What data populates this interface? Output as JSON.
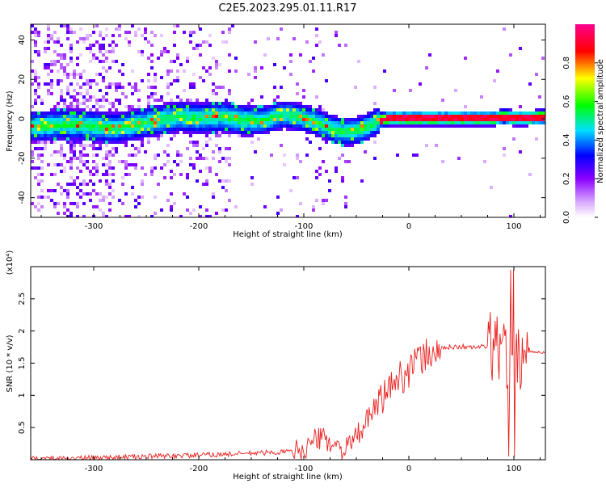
{
  "title": "C2E5.2023.295.01.11.R17",
  "chart_data": [
    {
      "type": "heatmap",
      "xlabel": "Height of straight line (km)",
      "ylabel": "Frequency (Hz)",
      "xlim": [
        -360,
        130
      ],
      "ylim": [
        -50,
        48
      ],
      "x_ticks": [
        -300,
        -200,
        -100,
        0,
        100
      ],
      "y_ticks": [
        -40,
        -20,
        0,
        20,
        40
      ],
      "colorbar": {
        "label": "Normalized spectral amplitude",
        "range": [
          0,
          1
        ],
        "ticks": [
          0.0,
          0.2,
          0.4,
          0.6,
          0.8
        ],
        "colors": [
          "#ffffff",
          "#a000ff",
          "#0000ff",
          "#00e0ff",
          "#00ff00",
          "#ffff00",
          "#ff0000",
          "#ff0090"
        ]
      },
      "ridge": {
        "x": [
          -350,
          -330,
          -300,
          -280,
          -260,
          -240,
          -220,
          -200,
          -180,
          -160,
          -140,
          -120,
          -100,
          -90,
          -80,
          -70,
          -60,
          -50,
          -40,
          -30,
          -20,
          0,
          20,
          40,
          60,
          80,
          90,
          100,
          110,
          130
        ],
        "y": [
          -3,
          -2,
          -3,
          -4,
          -2,
          0,
          2,
          1,
          2,
          0,
          0,
          3,
          1,
          -1,
          -3,
          -5,
          -6,
          -5,
          -3,
          0,
          1,
          1,
          1,
          1,
          1,
          1,
          2,
          1,
          1,
          2
        ]
      }
    },
    {
      "type": "line",
      "xlabel": "Height of straight line (km)",
      "ylabel": "SNR (10 * v/v)",
      "multiplier": "(x10⁴)",
      "xlim": [
        -360,
        130
      ],
      "ylim": [
        0,
        3.0
      ],
      "x_ticks": [
        -300,
        -200,
        -100,
        0,
        100
      ],
      "y_ticks": [
        0.5,
        1.0,
        1.5,
        2.0,
        2.5
      ],
      "series": [
        {
          "color": "#e8201e",
          "x": [
            -360,
            -300,
            -250,
            -200,
            -150,
            -120,
            -100,
            -90,
            -80,
            -70,
            -60,
            -50,
            -40,
            -30,
            -20,
            -10,
            0,
            10,
            20,
            30,
            40,
            50,
            60,
            70,
            80,
            90,
            95,
            100,
            105,
            110,
            115,
            130
          ],
          "y": [
            0.01,
            0.03,
            0.05,
            0.07,
            0.1,
            0.12,
            0.15,
            0.3,
            0.35,
            0.2,
            0.15,
            0.35,
            0.6,
            0.85,
            1.1,
            1.25,
            1.4,
            1.55,
            1.65,
            1.72,
            1.75,
            1.76,
            1.74,
            1.76,
            1.75,
            1.72,
            1.5,
            1.3,
            1.6,
            1.68,
            1.68,
            1.67
          ]
        }
      ]
    }
  ]
}
